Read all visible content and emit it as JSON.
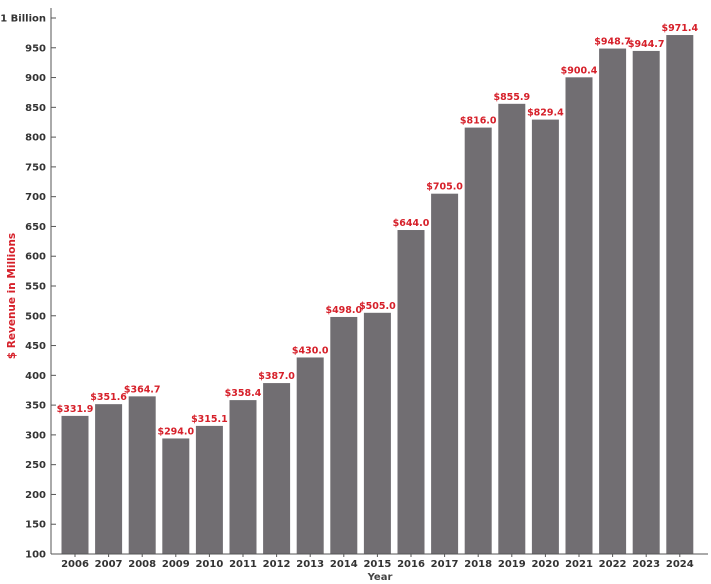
{
  "chart_data": {
    "type": "bar",
    "xlabel": "Year",
    "ylabel": "$ Revenue in Millions",
    "ylim": [
      100,
      1000
    ],
    "y_ticks": [
      100,
      150,
      200,
      250,
      300,
      350,
      400,
      450,
      500,
      550,
      600,
      650,
      700,
      750,
      800,
      850,
      900,
      950,
      1000
    ],
    "y_tick_labels": [
      "100",
      "150",
      "200",
      "250",
      "300",
      "350",
      "400",
      "450",
      "500",
      "550",
      "600",
      "650",
      "700",
      "750",
      "800",
      "850",
      "900",
      "950",
      "1 Billion"
    ],
    "categories": [
      "2006",
      "2007",
      "2008",
      "2009",
      "2010",
      "2011",
      "2012",
      "2013",
      "2014",
      "2015",
      "2016",
      "2017",
      "2018",
      "2019",
      "2020",
      "2021",
      "2022",
      "2023",
      "2024"
    ],
    "values": [
      331.9,
      351.6,
      364.7,
      294.0,
      315.1,
      358.4,
      387.0,
      430.0,
      498.0,
      505.0,
      644.0,
      705.0,
      816.0,
      855.9,
      829.4,
      900.4,
      948.7,
      944.7,
      971.4
    ],
    "data_labels": [
      "$331.9",
      "$351.6",
      "$364.7",
      "$294.0",
      "$315.1",
      "$358.4",
      "$387.0",
      "$430.0",
      "$498.0",
      "$505.0",
      "$644.0",
      "$705.0",
      "$816.0",
      "$855.9",
      "$829.4",
      "$900.4",
      "$948.7",
      "$944.7",
      "$971.4"
    ],
    "grid": false,
    "legend": "none",
    "colors": {
      "bar": "#716e72",
      "data_label": "#d6202a",
      "axis_title_y": "#d6202a",
      "axis": "#555555"
    }
  }
}
